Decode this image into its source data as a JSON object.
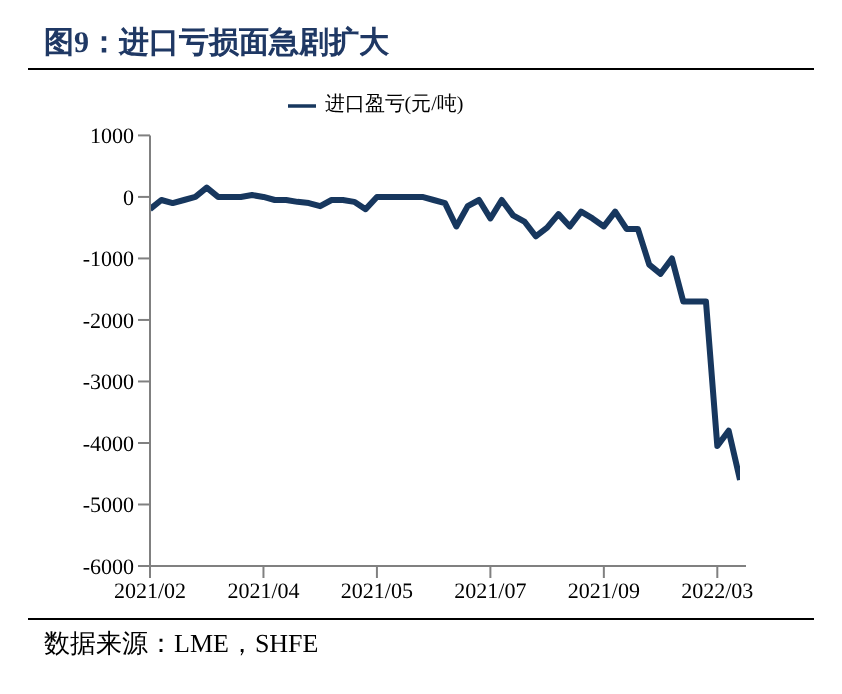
{
  "chart_data": {
    "type": "line",
    "title": "图9：进口亏损面急剧扩大",
    "annotations": [
      "数据来源：LME，SHFE"
    ],
    "categories": [
      "2021/02",
      null,
      null,
      null,
      null,
      null,
      null,
      null,
      null,
      null,
      "2021/04",
      null,
      null,
      null,
      null,
      null,
      null,
      null,
      null,
      null,
      "2021/05",
      null,
      null,
      null,
      null,
      null,
      null,
      null,
      null,
      null,
      "2021/07",
      null,
      null,
      null,
      null,
      null,
      null,
      null,
      null,
      null,
      "2021/09",
      null,
      null,
      null,
      null,
      null,
      null,
      null,
      null,
      null,
      "2022/03",
      null,
      null
    ],
    "series": [
      {
        "name": "进口盈亏(元/吨)",
        "color": "#17375e",
        "values": [
          -200,
          -50,
          -100,
          -50,
          0,
          150,
          0,
          0,
          0,
          30,
          0,
          -50,
          -50,
          -80,
          -100,
          -150,
          -50,
          -50,
          -80,
          -200,
          0,
          0,
          0,
          0,
          0,
          -50,
          -100,
          -480,
          -150,
          -50,
          -350,
          -50,
          -300,
          -400,
          -640,
          -500,
          -280,
          -480,
          -240,
          -350,
          -480,
          -240,
          -520,
          -520,
          -1100,
          -1250,
          -1000,
          -1700,
          -1700,
          -1700,
          -4050,
          -3800,
          -4600
        ]
      }
    ],
    "ylim": [
      -6000,
      1000
    ],
    "yticks": [
      1000,
      0,
      -1000,
      -2000,
      -3000,
      -4000,
      -5000,
      -6000
    ],
    "grid": false,
    "legend": "top",
    "marker": "none",
    "line_style": "solid"
  }
}
